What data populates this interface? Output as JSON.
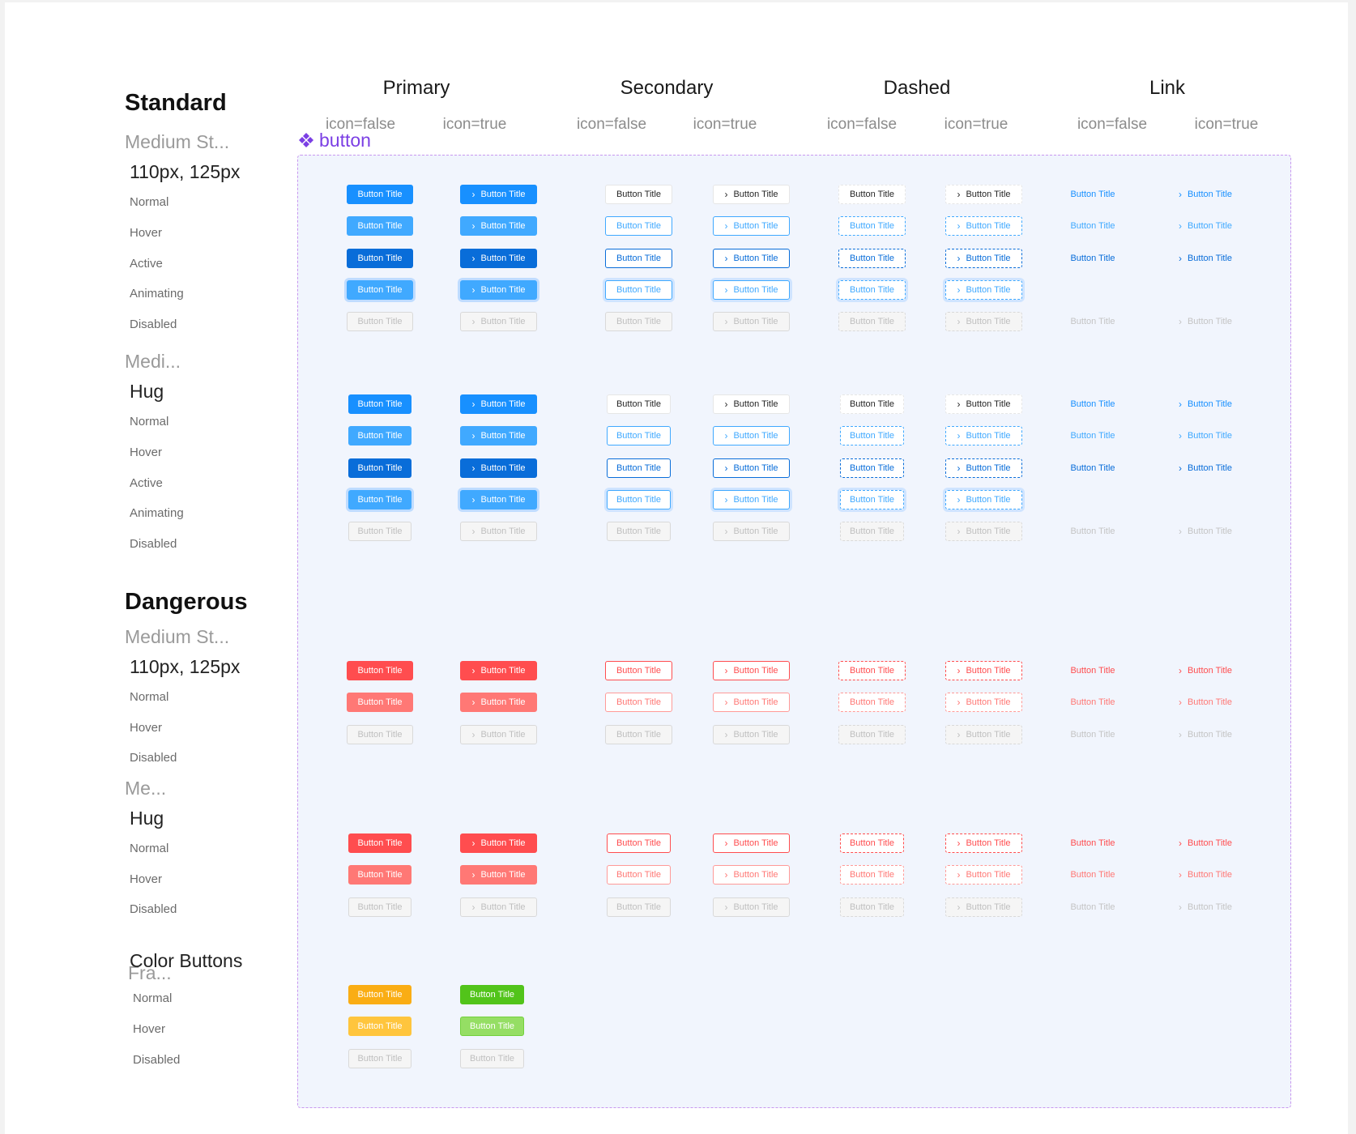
{
  "columns": [
    {
      "title": "Primary",
      "variants": [
        "icon=false",
        "icon=true"
      ]
    },
    {
      "title": "Secondary",
      "variants": [
        "icon=false",
        "icon=true"
      ]
    },
    {
      "title": "Dashed",
      "variants": [
        "icon=false",
        "icon=true"
      ]
    },
    {
      "title": "Link",
      "variants": [
        "icon=false",
        "icon=true"
      ]
    }
  ],
  "component_label": "button",
  "button_text": "Button Title",
  "chevron_glyph": "›",
  "sections": {
    "standard": {
      "title": "Standard",
      "group1": {
        "subtitle": "Medium St...",
        "size": "110px, 125px",
        "states": [
          "Normal",
          "Hover",
          "Active",
          "Animating",
          "Disabled"
        ]
      },
      "group2": {
        "subtitle": "Medi...",
        "size": "Hug",
        "states": [
          "Normal",
          "Hover",
          "Active",
          "Animating",
          "Disabled"
        ]
      }
    },
    "dangerous": {
      "title": "Dangerous",
      "group1": {
        "subtitle": "Medium St...",
        "size": "110px, 125px",
        "states": [
          "Normal",
          "Hover",
          "Disabled"
        ]
      },
      "group2": {
        "subtitle": "Me...",
        "size": "Hug",
        "states": [
          "Normal",
          "Hover",
          "Disabled"
        ]
      }
    },
    "color": {
      "title": "Color Buttons",
      "subtitle": "Fra...",
      "states": [
        "Normal",
        "Hover",
        "Disabled"
      ]
    }
  },
  "colors": {
    "primary": "#1890ff",
    "primary_hover": "#40a9ff",
    "primary_active": "#096dd9",
    "danger": "#ff4d4f",
    "danger_hover": "#ff7875",
    "warning": "#faad14",
    "success": "#52c41a",
    "frame_border": "#c897ef",
    "component_label": "#7b3fe4"
  }
}
